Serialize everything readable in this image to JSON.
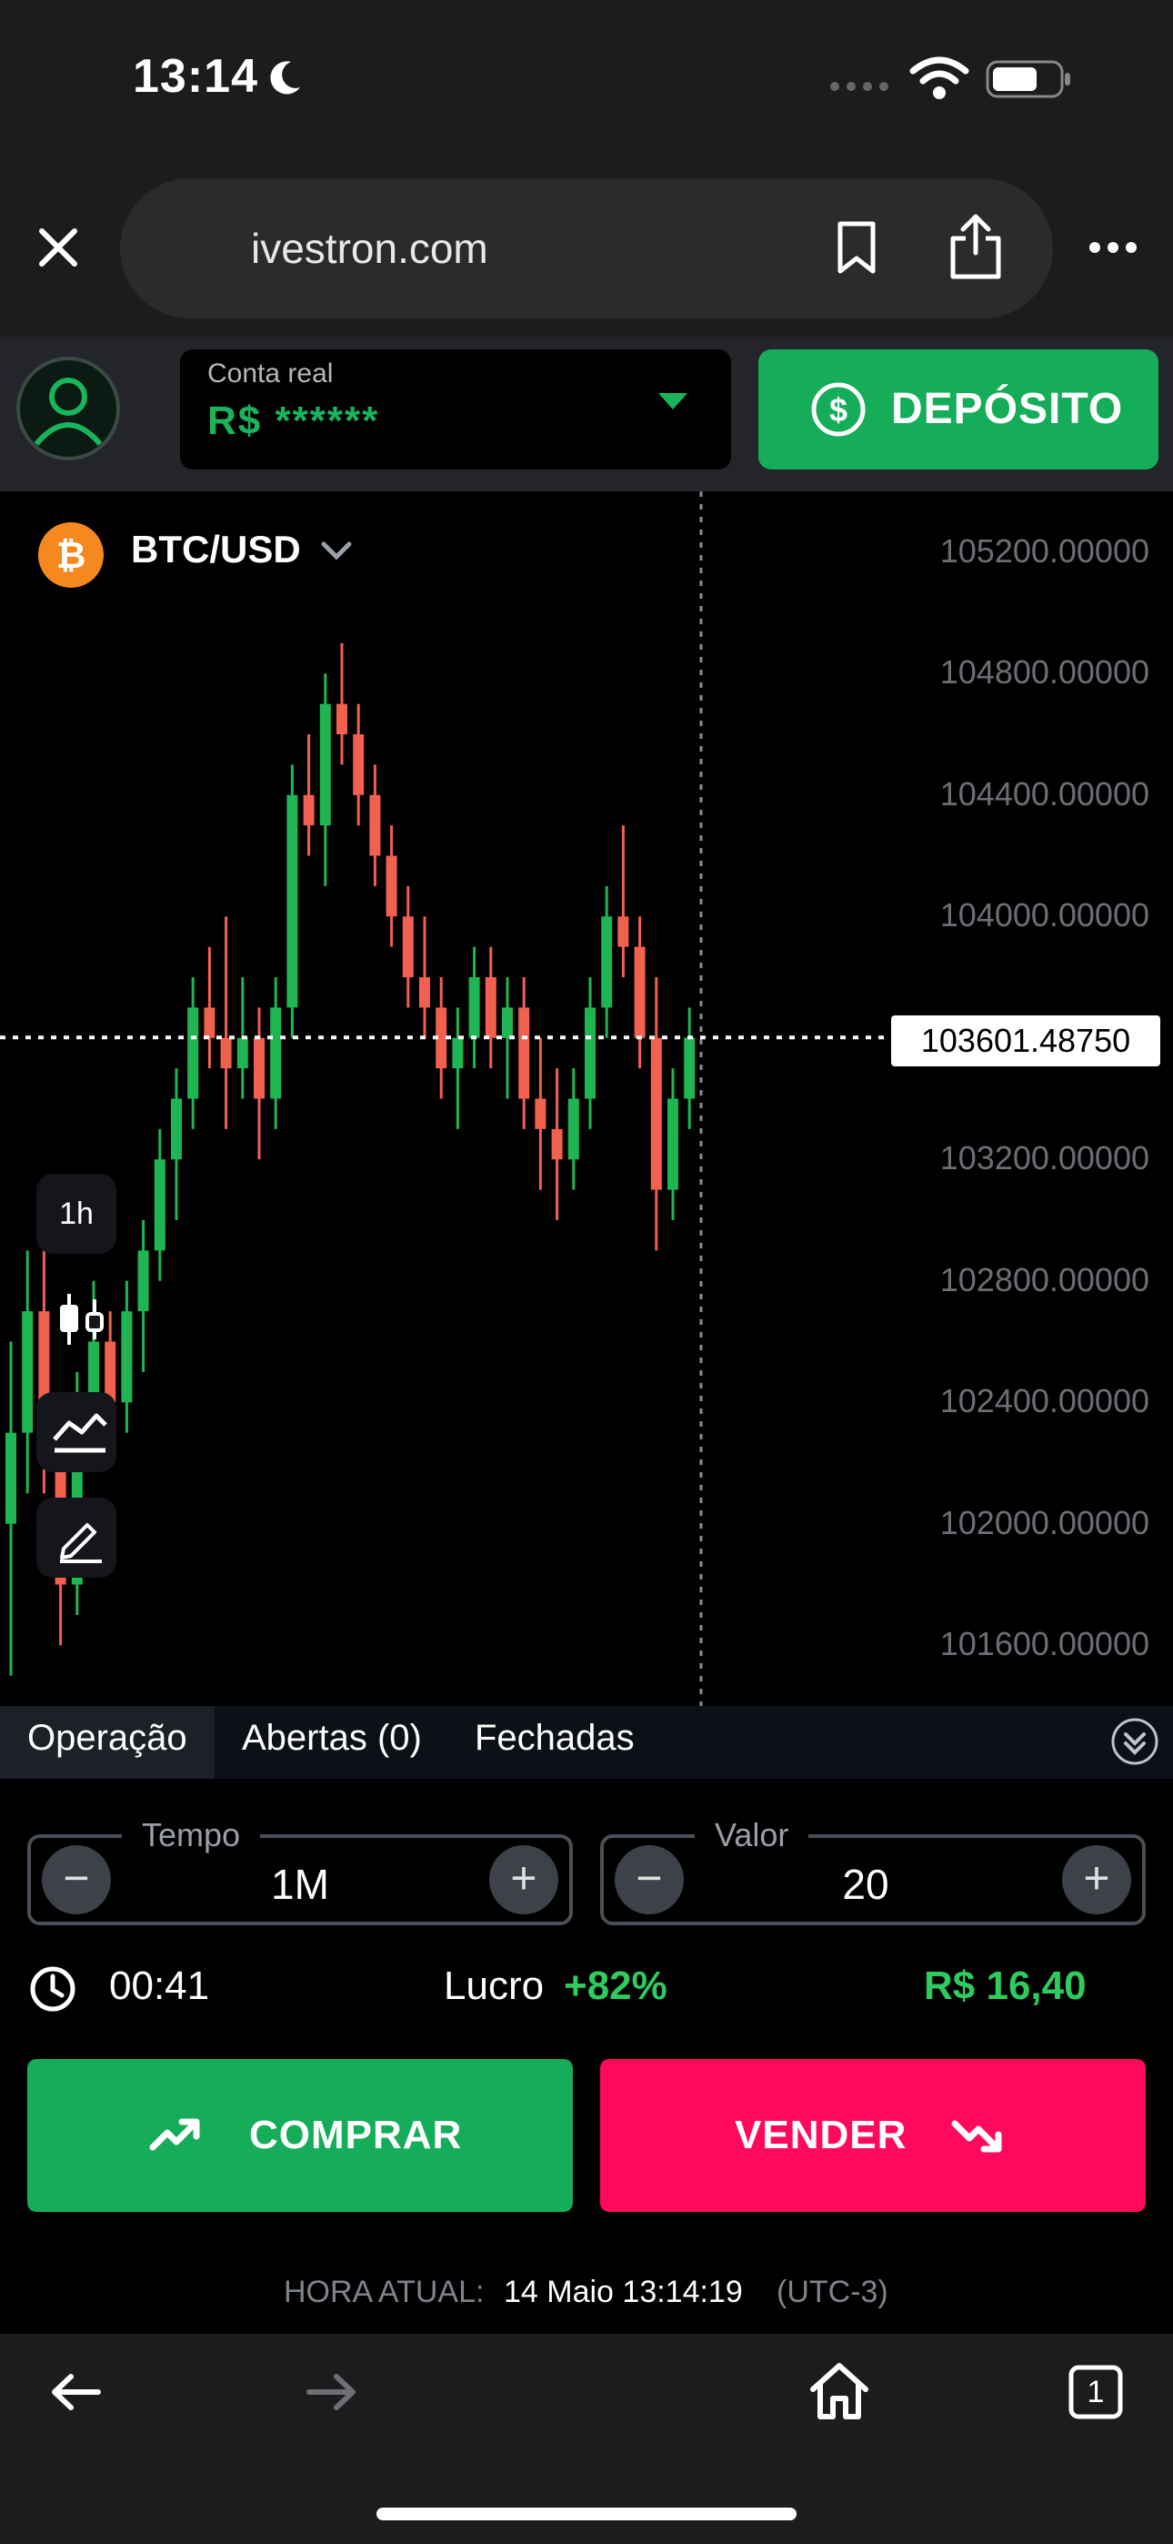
{
  "status_bar": {
    "time": "13:14"
  },
  "browser": {
    "url": "ivestron.com"
  },
  "header": {
    "account_label": "Conta real",
    "account_value": "R$ ******",
    "deposit_label": "DEPÓSITO"
  },
  "chart": {
    "pair": "BTC/USD",
    "timeframe": "1h",
    "current_price": "103601.48750",
    "y_ticks": [
      "105200.00000",
      "104800.00000",
      "104400.00000",
      "104000.00000",
      "103200.00000",
      "102800.00000",
      "102400.00000",
      "102000.00000",
      "101600.00000"
    ]
  },
  "chart_data": {
    "type": "candlestick",
    "ylim": [
      101400,
      105400
    ],
    "current_price": 103601.4875,
    "candles": [
      [
        102000,
        102600,
        101500,
        102300
      ],
      [
        102300,
        102900,
        102100,
        102700
      ],
      [
        102700,
        102900,
        102100,
        102200
      ],
      [
        102200,
        102300,
        101600,
        101800
      ],
      [
        101800,
        102500,
        101700,
        102400
      ],
      [
        102400,
        102800,
        102200,
        102600
      ],
      [
        102600,
        102700,
        102300,
        102400
      ],
      [
        102400,
        102800,
        102300,
        102700
      ],
      [
        102700,
        103000,
        102500,
        102900
      ],
      [
        102900,
        103300,
        102800,
        103200
      ],
      [
        103200,
        103500,
        103000,
        103400
      ],
      [
        103400,
        103800,
        103300,
        103700
      ],
      [
        103700,
        103900,
        103500,
        103600
      ],
      [
        103600,
        104000,
        103300,
        103500
      ],
      [
        103500,
        103800,
        103400,
        103600
      ],
      [
        103600,
        103700,
        103200,
        103400
      ],
      [
        103400,
        103800,
        103300,
        103700
      ],
      [
        103700,
        104500,
        103600,
        104400
      ],
      [
        104400,
        104600,
        104200,
        104300
      ],
      [
        104300,
        104800,
        104100,
        104700
      ],
      [
        104700,
        104900,
        104500,
        104600
      ],
      [
        104600,
        104700,
        104300,
        104400
      ],
      [
        104400,
        104500,
        104100,
        104200
      ],
      [
        104200,
        104300,
        103900,
        104000
      ],
      [
        104000,
        104100,
        103700,
        103800
      ],
      [
        103800,
        104000,
        103600,
        103700
      ],
      [
        103700,
        103800,
        103400,
        103500
      ],
      [
        103500,
        103700,
        103300,
        103600
      ],
      [
        103600,
        103900,
        103500,
        103800
      ],
      [
        103800,
        103900,
        103500,
        103600
      ],
      [
        103600,
        103800,
        103400,
        103700
      ],
      [
        103700,
        103800,
        103300,
        103400
      ],
      [
        103400,
        103600,
        103100,
        103300
      ],
      [
        103300,
        103500,
        103000,
        103200
      ],
      [
        103200,
        103500,
        103100,
        103400
      ],
      [
        103400,
        103800,
        103300,
        103700
      ],
      [
        103700,
        104100,
        103600,
        104000
      ],
      [
        104000,
        104300,
        103800,
        103900
      ],
      [
        103900,
        104000,
        103500,
        103600
      ],
      [
        103600,
        103800,
        102900,
        103100
      ],
      [
        103100,
        103500,
        103000,
        103400
      ],
      [
        103400,
        103700,
        103300,
        103601
      ]
    ]
  },
  "tabs": {
    "operation": "Operação",
    "open": "Abertas (0)",
    "closed": "Fechadas"
  },
  "trade": {
    "time_label": "Tempo",
    "time_value": "1M",
    "amount_label": "Valor",
    "amount_value": "20",
    "countdown": "00:41",
    "profit_label": "Lucro",
    "profit_pct": "+82%",
    "profit_value": "R$ 16,40",
    "buy_label": "COMPRAR",
    "sell_label": "VENDER",
    "current_time_label": "HORA ATUAL:",
    "current_time_value": "14 Maio 13:14:19",
    "timezone": "(UTC-3)"
  },
  "bottom_nav": {
    "tabs_count": "1"
  },
  "colors": {
    "green": "#15ad59",
    "red": "#ff0a5a",
    "up_candle": "#1fb553",
    "down_candle": "#f2604f"
  }
}
